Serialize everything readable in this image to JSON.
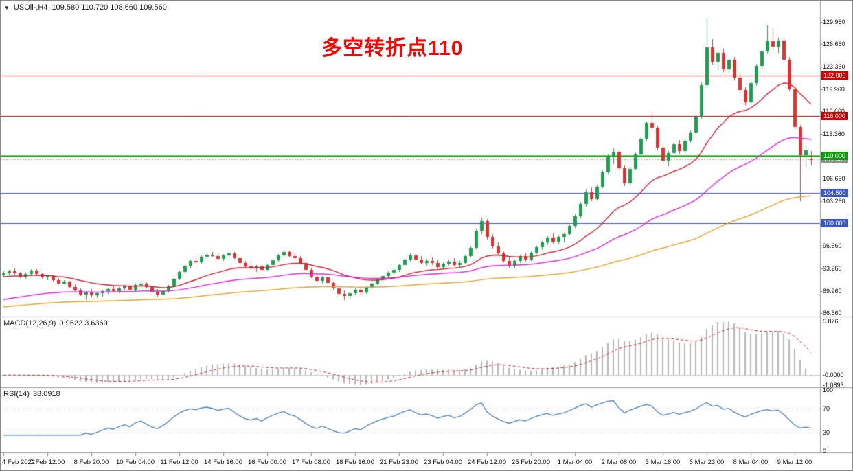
{
  "window": {
    "title_bar": {
      "collapse_icon": "▼",
      "symbol_period": "USOil-,H4",
      "ohlc": "109.580 110.720 108.660 109.560"
    },
    "annotation": {
      "text": "多空转折点110",
      "color": "#ff0000"
    }
  },
  "chart_data": {
    "type": "candlestick",
    "symbol": "USOil-",
    "timeframe": "H4",
    "title": "USOil- H4 candlestick chart with MACD and RSI",
    "current_ohlc": {
      "open": "109.580",
      "high": "110.720",
      "low": "108.660",
      "close": "109.560"
    },
    "price_axis": {
      "min": 86.66,
      "max": 129.96,
      "labels": [
        "129.960",
        "126.660",
        "123.360",
        "119.960",
        "116.660",
        "113.360",
        "109.960",
        "106.660",
        "103.260",
        "99.960",
        "96.660",
        "93.260",
        "89.960",
        "86.660"
      ]
    },
    "levels": [
      {
        "label": "122.000",
        "color": "#cc0000",
        "width": 1
      },
      {
        "label": "116.000",
        "color": "#cc0000",
        "width": 1
      },
      {
        "label": "110.000",
        "color": "#0a9a0a",
        "width": 2
      },
      {
        "label": "104.500",
        "color": "#3a55cc",
        "width": 1
      },
      {
        "label": "100.000",
        "color": "#3a55cc",
        "width": 1
      }
    ],
    "current_price_badge": {
      "label": "109.560",
      "color": "#8f8f8f"
    },
    "candle_colors": {
      "up": "#16a24e",
      "down": "#e03131",
      "current_line": "#aaaaaa"
    },
    "moving_averages": [
      {
        "name": "ma-fast",
        "period": 21,
        "seed": 92.0,
        "color": "#cf1f2f"
      },
      {
        "name": "ma-mid",
        "period": 55,
        "seed": 88.5,
        "color": "#dd22dd"
      },
      {
        "name": "ma-slow",
        "period": 130,
        "seed": 87.5,
        "color": "#e4a229"
      }
    ],
    "candles": [
      [
        92.3,
        92.85,
        91.95,
        92.6
      ],
      [
        92.6,
        93.1,
        92.3,
        92.9
      ],
      [
        92.9,
        93.3,
        92.4,
        92.55
      ],
      [
        92.55,
        92.8,
        91.9,
        92.1
      ],
      [
        92.1,
        92.7,
        91.8,
        92.5
      ],
      [
        92.5,
        93.2,
        92.2,
        93.0
      ],
      [
        93.0,
        93.15,
        92.3,
        92.45
      ],
      [
        92.45,
        92.6,
        91.8,
        91.95
      ],
      [
        91.95,
        92.4,
        91.6,
        92.2
      ],
      [
        92.2,
        92.35,
        91.4,
        91.55
      ],
      [
        91.55,
        91.9,
        90.95,
        91.1
      ],
      [
        91.1,
        91.6,
        90.9,
        91.35
      ],
      [
        91.35,
        91.5,
        90.4,
        90.55
      ],
      [
        90.55,
        90.9,
        89.8,
        90.0
      ],
      [
        90.0,
        90.3,
        89.2,
        89.45
      ],
      [
        89.45,
        89.9,
        88.65,
        89.75
      ],
      [
        89.75,
        90.2,
        89.0,
        89.3
      ],
      [
        89.3,
        89.8,
        88.9,
        89.6
      ],
      [
        89.6,
        90.1,
        89.1,
        89.9
      ],
      [
        89.9,
        90.4,
        89.55,
        90.2
      ],
      [
        90.2,
        90.6,
        89.7,
        89.95
      ],
      [
        89.95,
        90.5,
        89.6,
        90.3
      ],
      [
        90.3,
        90.85,
        90.0,
        90.6
      ],
      [
        90.6,
        90.9,
        89.95,
        90.15
      ],
      [
        90.15,
        91.0,
        89.9,
        90.8
      ],
      [
        90.8,
        91.4,
        90.4,
        91.1
      ],
      [
        91.1,
        91.3,
        90.3,
        90.5
      ],
      [
        90.5,
        90.7,
        89.6,
        89.85
      ],
      [
        89.85,
        90.2,
        89.1,
        89.4
      ],
      [
        89.4,
        90.1,
        89.15,
        89.9
      ],
      [
        89.9,
        90.8,
        89.7,
        90.65
      ],
      [
        90.65,
        91.9,
        90.5,
        91.75
      ],
      [
        91.75,
        93.0,
        91.6,
        92.8
      ],
      [
        92.8,
        93.9,
        92.6,
        93.7
      ],
      [
        93.7,
        94.6,
        93.3,
        94.4
      ],
      [
        94.4,
        95.0,
        93.9,
        94.2
      ],
      [
        94.2,
        95.2,
        94.0,
        95.0
      ],
      [
        95.0,
        95.6,
        94.6,
        95.3
      ],
      [
        95.3,
        95.75,
        94.9,
        95.1
      ],
      [
        95.1,
        95.5,
        94.5,
        94.75
      ],
      [
        94.75,
        95.4,
        94.4,
        95.2
      ],
      [
        95.2,
        95.9,
        94.85,
        95.55
      ],
      [
        95.55,
        95.7,
        94.7,
        94.85
      ],
      [
        94.85,
        95.0,
        94.0,
        94.15
      ],
      [
        94.15,
        94.4,
        93.4,
        93.6
      ],
      [
        93.6,
        94.1,
        93.1,
        93.3
      ],
      [
        93.3,
        93.8,
        92.8,
        93.65
      ],
      [
        93.65,
        94.0,
        92.9,
        93.1
      ],
      [
        93.1,
        94.0,
        92.95,
        93.85
      ],
      [
        93.85,
        94.7,
        93.6,
        94.55
      ],
      [
        94.55,
        95.4,
        94.3,
        95.2
      ],
      [
        95.2,
        96.1,
        95.0,
        95.7
      ],
      [
        95.7,
        95.95,
        94.9,
        95.15
      ],
      [
        95.15,
        95.6,
        94.6,
        94.85
      ],
      [
        94.85,
        95.1,
        93.9,
        94.1
      ],
      [
        94.1,
        94.3,
        92.9,
        93.1
      ],
      [
        93.1,
        93.4,
        91.9,
        92.1
      ],
      [
        92.1,
        92.6,
        91.2,
        91.45
      ],
      [
        91.45,
        92.2,
        91.1,
        91.95
      ],
      [
        91.95,
        92.3,
        91.0,
        91.2
      ],
      [
        91.2,
        91.4,
        90.1,
        90.3
      ],
      [
        90.3,
        90.6,
        89.3,
        89.55
      ],
      [
        89.55,
        90.0,
        88.6,
        89.2
      ],
      [
        89.2,
        89.8,
        88.8,
        89.6
      ],
      [
        89.6,
        90.3,
        89.3,
        90.1
      ],
      [
        90.1,
        90.5,
        89.4,
        89.7
      ],
      [
        89.7,
        90.6,
        89.5,
        90.45
      ],
      [
        90.45,
        91.3,
        90.2,
        91.1
      ],
      [
        91.1,
        91.9,
        90.85,
        91.7
      ],
      [
        91.7,
        92.4,
        91.4,
        92.2
      ],
      [
        92.2,
        92.9,
        91.9,
        92.7
      ],
      [
        92.7,
        93.3,
        92.3,
        93.05
      ],
      [
        93.05,
        94.0,
        92.8,
        93.8
      ],
      [
        93.8,
        94.8,
        93.6,
        94.6
      ],
      [
        94.6,
        95.5,
        94.3,
        95.2
      ],
      [
        95.2,
        95.6,
        94.4,
        94.65
      ],
      [
        94.65,
        95.1,
        93.9,
        94.15
      ],
      [
        94.15,
        94.7,
        93.7,
        94.45
      ],
      [
        94.45,
        94.9,
        93.8,
        94.1
      ],
      [
        94.1,
        94.5,
        93.3,
        93.55
      ],
      [
        93.55,
        94.2,
        93.2,
        94.0
      ],
      [
        94.0,
        94.6,
        93.7,
        94.35
      ],
      [
        94.35,
        94.8,
        93.6,
        93.85
      ],
      [
        93.85,
        94.4,
        93.5,
        94.15
      ],
      [
        94.15,
        95.3,
        94.0,
        95.1
      ],
      [
        95.1,
        96.6,
        94.9,
        96.4
      ],
      [
        96.4,
        99.2,
        96.2,
        98.9
      ],
      [
        98.9,
        100.85,
        98.4,
        100.3
      ],
      [
        100.3,
        100.6,
        97.6,
        98.0
      ],
      [
        98.0,
        98.4,
        96.3,
        96.6
      ],
      [
        96.6,
        97.2,
        95.3,
        95.55
      ],
      [
        95.55,
        95.9,
        94.2,
        94.45
      ],
      [
        94.45,
        95.1,
        93.4,
        93.7
      ],
      [
        93.7,
        94.6,
        93.3,
        94.4
      ],
      [
        94.4,
        95.3,
        94.1,
        95.1
      ],
      [
        95.1,
        95.5,
        94.3,
        94.6
      ],
      [
        94.6,
        95.8,
        94.4,
        95.6
      ],
      [
        95.6,
        96.7,
        95.4,
        96.5
      ],
      [
        96.5,
        97.4,
        96.1,
        97.2
      ],
      [
        97.2,
        98.1,
        96.8,
        97.9
      ],
      [
        97.9,
        98.5,
        97.0,
        97.3
      ],
      [
        97.3,
        98.2,
        96.9,
        97.95
      ],
      [
        97.95,
        98.6,
        97.2,
        98.4
      ],
      [
        98.4,
        99.8,
        98.2,
        99.6
      ],
      [
        99.6,
        101.4,
        99.3,
        101.1
      ],
      [
        101.1,
        103.2,
        100.8,
        102.9
      ],
      [
        102.9,
        105.0,
        102.5,
        104.6
      ],
      [
        104.6,
        105.3,
        103.3,
        103.6
      ],
      [
        103.6,
        105.8,
        103.4,
        105.5
      ],
      [
        105.5,
        107.9,
        105.2,
        107.6
      ],
      [
        107.6,
        110.2,
        107.3,
        109.9
      ],
      [
        109.9,
        111.2,
        108.8,
        110.7
      ],
      [
        110.7,
        111.0,
        107.8,
        108.2
      ],
      [
        108.2,
        108.6,
        105.6,
        106.0
      ],
      [
        106.0,
        108.4,
        105.8,
        108.1
      ],
      [
        108.1,
        110.6,
        107.9,
        110.3
      ],
      [
        110.3,
        112.9,
        110.0,
        112.6
      ],
      [
        112.6,
        115.2,
        112.3,
        114.9
      ],
      [
        114.9,
        116.6,
        113.8,
        114.2
      ],
      [
        114.2,
        114.5,
        110.9,
        111.3
      ],
      [
        111.3,
        111.6,
        108.9,
        109.3
      ],
      [
        109.3,
        110.8,
        108.5,
        110.5
      ],
      [
        110.5,
        112.1,
        110.2,
        111.8
      ],
      [
        111.8,
        112.4,
        110.4,
        110.8
      ],
      [
        110.8,
        112.6,
        110.5,
        112.3
      ],
      [
        112.3,
        113.8,
        112.0,
        113.5
      ],
      [
        113.5,
        116.2,
        113.2,
        115.9
      ],
      [
        115.9,
        121.0,
        115.6,
        120.6
      ],
      [
        120.6,
        130.5,
        120.2,
        126.2
      ],
      [
        126.2,
        127.4,
        123.6,
        124.0
      ],
      [
        124.0,
        125.8,
        122.8,
        125.4
      ],
      [
        125.4,
        126.0,
        122.5,
        122.9
      ],
      [
        122.9,
        124.6,
        122.4,
        124.3
      ],
      [
        124.3,
        124.8,
        121.3,
        121.7
      ],
      [
        121.7,
        122.2,
        119.4,
        119.8
      ],
      [
        119.8,
        120.3,
        117.6,
        118.0
      ],
      [
        118.0,
        121.2,
        117.8,
        120.9
      ],
      [
        120.9,
        123.7,
        120.5,
        123.4
      ],
      [
        123.4,
        125.9,
        123.0,
        125.6
      ],
      [
        125.6,
        129.4,
        125.3,
        127.1
      ],
      [
        127.1,
        128.9,
        125.8,
        126.3
      ],
      [
        126.3,
        127.6,
        125.4,
        127.2
      ],
      [
        127.2,
        127.5,
        123.9,
        124.3
      ],
      [
        124.3,
        124.8,
        119.6,
        120.0
      ],
      [
        120.0,
        120.5,
        113.9,
        114.3
      ],
      [
        114.3,
        114.6,
        103.35,
        110.1
      ],
      [
        110.1,
        111.6,
        108.4,
        110.9
      ],
      [
        109.58,
        110.72,
        108.66,
        109.56
      ]
    ],
    "time_axis": {
      "labels": [
        {
          "text": "4 Feb 2022",
          "bar": 0
        },
        {
          "text": "7 Feb 12:00",
          "bar": 8
        },
        {
          "text": "8 Feb 20:00",
          "bar": 16
        },
        {
          "text": "10 Feb 04:00",
          "bar": 24
        },
        {
          "text": "11 Feb 12:00",
          "bar": 32
        },
        {
          "text": "14 Feb 16:00",
          "bar": 40
        },
        {
          "text": "16 Feb 00:00",
          "bar": 48
        },
        {
          "text": "17 Feb 08:00",
          "bar": 56
        },
        {
          "text": "18 Feb 16:00",
          "bar": 64
        },
        {
          "text": "21 Feb 23:00",
          "bar": 72
        },
        {
          "text": "23 Feb 04:00",
          "bar": 80
        },
        {
          "text": "24 Feb 12:00",
          "bar": 88
        },
        {
          "text": "25 Feb 20:00",
          "bar": 96
        },
        {
          "text": "1 Mar 04:00",
          "bar": 104
        },
        {
          "text": "2 Mar 08:00",
          "bar": 112
        },
        {
          "text": "3 Mar 16:00",
          "bar": 120
        },
        {
          "text": "6 Mar 23:00",
          "bar": 128
        },
        {
          "text": "8 Mar 04:00",
          "bar": 136
        },
        {
          "text": "9 Mar 12:00",
          "bar": 144
        }
      ]
    },
    "macd": {
      "label": "MACD(12,26,9)",
      "values_text": "0.9622 3.6369",
      "fast": 12,
      "slow": 26,
      "signal": 9,
      "axis_labels": [
        "5.876",
        "-0.0000",
        "-1.0893"
      ],
      "histogram_color": "#b4b4b4",
      "signal_color": "#cc2222",
      "zero_line_color": "#cfcfcf"
    },
    "rsi": {
      "label": "RSI(14)",
      "value_text": "38.0918",
      "period": 14,
      "level_lines": [
        70,
        30
      ],
      "axis_labels": [
        "100",
        "70",
        "30",
        "0"
      ],
      "line_color": "#4a7ebb",
      "level_color": "#c4c4c4"
    }
  }
}
